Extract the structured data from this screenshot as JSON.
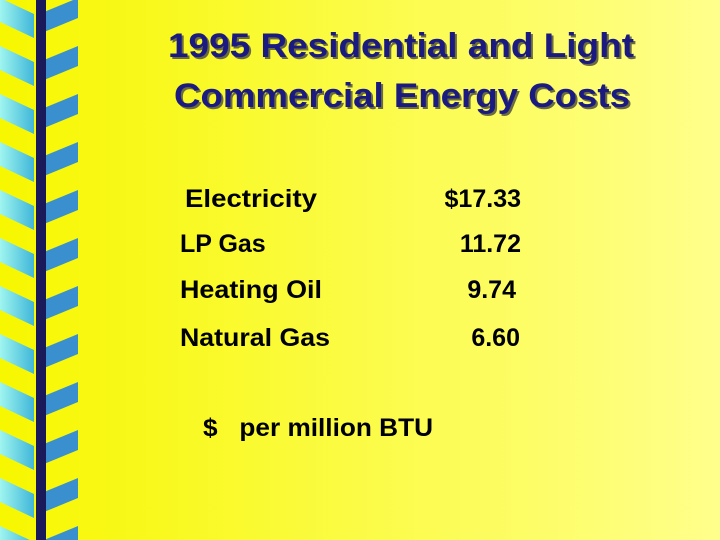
{
  "header": {
    "title_lines": [
      "1995 Residential and Light",
      "Commercial Energy Costs"
    ]
  },
  "table": {
    "rows": [
      [
        "Electricity",
        "$17.33"
      ],
      [
        "LP Gas",
        "11.72"
      ],
      [
        "Heating Oil",
        "9.74"
      ],
      [
        "Natural Gas",
        "6.60"
      ]
    ]
  },
  "footer": {
    "note": "$   per million BTU"
  }
}
